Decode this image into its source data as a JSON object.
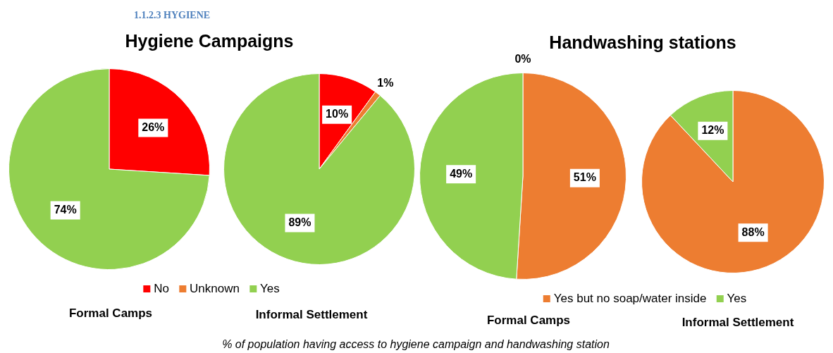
{
  "chart_data": [
    {
      "type": "pie",
      "title": "Hygiene Campaigns",
      "subtitle": "Formal Camps",
      "categories": [
        "No",
        "Unknown",
        "Yes"
      ],
      "values": [
        26,
        0,
        74
      ],
      "colors": [
        "#ff0000",
        "#ed7d31",
        "#92d050"
      ],
      "value_labels": [
        "26%",
        null,
        "74%"
      ],
      "legend": "bottom",
      "annotations": [
        "1.1.2.3        HYGIENE",
        "% of population having access to hygiene campaign and handwashing station"
      ]
    },
    {
      "type": "pie",
      "subtitle": "Informal Settlement",
      "categories": [
        null,
        null,
        null
      ],
      "values": [
        10,
        1,
        89
      ],
      "colors": [
        "#ff0000",
        "#ed7d31",
        "#92d050"
      ],
      "value_labels": [
        "10%",
        "1%",
        "89%"
      ]
    },
    {
      "type": "pie",
      "title": "Handwashing stations",
      "subtitle": "Formal Camps",
      "categories": [
        null,
        "Yes but no soap/water inside",
        "Yes"
      ],
      "values": [
        0,
        51,
        49
      ],
      "colors": [
        "#ff0000",
        "#ed7d31",
        "#92d050"
      ],
      "value_labels": [
        "0%",
        "51%",
        "49%"
      ],
      "legend": "bottom"
    },
    {
      "type": "pie",
      "subtitle": "Informal Settlement",
      "categories": [
        null,
        null
      ],
      "values": [
        88,
        12
      ],
      "colors": [
        "#ed7d31",
        "#92d050"
      ],
      "value_labels": [
        "88%",
        "12%"
      ]
    }
  ]
}
